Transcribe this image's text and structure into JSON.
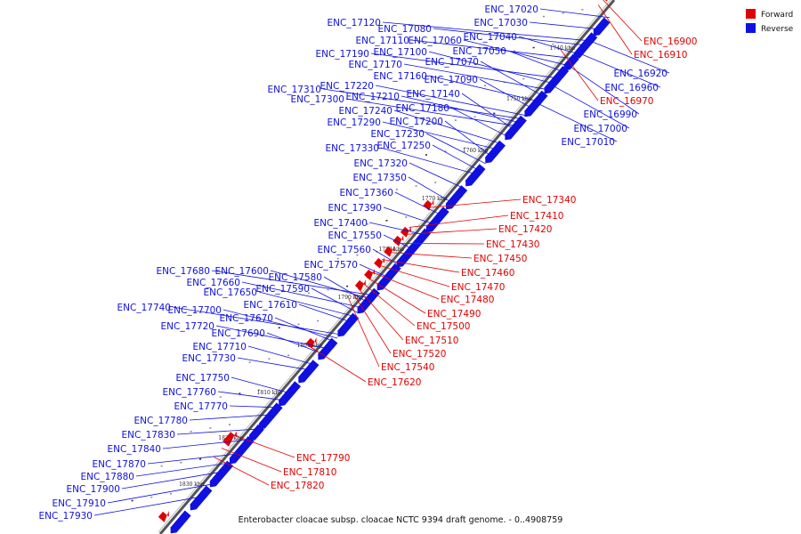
{
  "caption": "Enterobacter cloacae subsp. cloacae NCTC 9394 draft genome. - 0..4908759",
  "colors": {
    "forward": "#e00000",
    "reverse": "#1010e0",
    "axis": "#777777"
  },
  "legend": [
    {
      "label": "Forward",
      "color": "#e00000"
    },
    {
      "label": "Reverse",
      "color": "#1010e0"
    }
  ],
  "scale_ticks": [
    "1740 kbp",
    "1750 kbp",
    "1760 kbp",
    "1770 kbp",
    "1780 kbp",
    "1790 kbp",
    "1800 kbp",
    "1810 kbp",
    "1820 kbp",
    "1830 kbp"
  ],
  "forward_genes": [
    "ENC_16900",
    "ENC_16910",
    "ENC_16970",
    "ENC_17340",
    "ENC_17410",
    "ENC_17420",
    "ENC_17430",
    "ENC_17450",
    "ENC_17460",
    "ENC_17470",
    "ENC_17480",
    "ENC_17490",
    "ENC_17500",
    "ENC_17510",
    "ENC_17520",
    "ENC_17540",
    "ENC_17620",
    "ENC_17790",
    "ENC_17810",
    "ENC_17820"
  ],
  "reverse_genes": [
    "ENC_17020",
    "ENC_17030",
    "ENC_17120",
    "ENC_17080",
    "ENC_17040",
    "ENC_17110",
    "ENC_17060",
    "ENC_17050",
    "ENC_17190",
    "ENC_17100",
    "ENC_17170",
    "ENC_17070",
    "ENC_17160",
    "ENC_17090",
    "ENC_17310",
    "ENC_17220",
    "ENC_17300",
    "ENC_17210",
    "ENC_17140",
    "ENC_17180",
    "ENC_17240",
    "ENC_17290",
    "ENC_17200",
    "ENC_17230",
    "ENC_17330",
    "ENC_17250",
    "ENC_17320",
    "ENC_17350",
    "ENC_17360",
    "ENC_17390",
    "ENC_17400",
    "ENC_17550",
    "ENC_17560",
    "ENC_17570",
    "ENC_17680",
    "ENC_17600",
    "ENC_17580",
    "ENC_17660",
    "ENC_17590",
    "ENC_17650",
    "ENC_17610",
    "ENC_17740",
    "ENC_17700",
    "ENC_17670",
    "ENC_17720",
    "ENC_17690",
    "ENC_17710",
    "ENC_17730",
    "ENC_17750",
    "ENC_17760",
    "ENC_17770",
    "ENC_17780",
    "ENC_17830",
    "ENC_17840",
    "ENC_17870",
    "ENC_17880",
    "ENC_17900",
    "ENC_17910",
    "ENC_17930",
    "ENC_16920",
    "ENC_16960",
    "ENC_16990",
    "ENC_17000",
    "ENC_17010"
  ]
}
